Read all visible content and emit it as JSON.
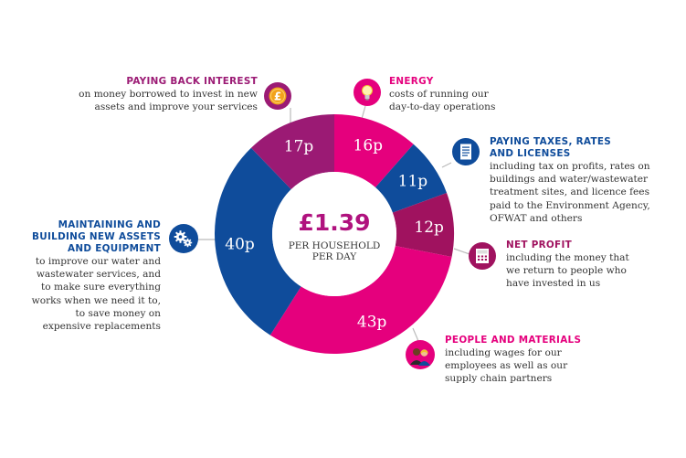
{
  "colors": {
    "pink": "#e5007d",
    "magenta": "#b0127e",
    "blue": "#0f4c9b",
    "purple": "#a0125f",
    "dark_purple": "#9b1a74",
    "connector": "#bbbbbb"
  },
  "center": {
    "amount": "£1.39",
    "line1": "PER HOUSEHOLD",
    "line2": "PER DAY"
  },
  "chart_data": {
    "type": "pie",
    "title": "£1.39 PER HOUSEHOLD PER DAY",
    "unit": "p",
    "slices": [
      {
        "label": "ENERGY",
        "value": 16,
        "text": "16p",
        "color": "#e5007d"
      },
      {
        "label": "PAYING TAXES, RATES AND LICENSES",
        "value": 11,
        "text": "11p",
        "color": "#0f4c9b"
      },
      {
        "label": "NET PROFIT",
        "value": 12,
        "text": "12p",
        "color": "#a0125f"
      },
      {
        "label": "PEOPLE AND MATERIALS",
        "value": 43,
        "text": "43p",
        "color": "#e5007d"
      },
      {
        "label": "MAINTAINING AND BUILDING NEW ASSETS AND EQUIPMENT",
        "value": 40,
        "text": "40p",
        "color": "#0f4c9b"
      },
      {
        "label": "PAYING BACK INTEREST",
        "value": 17,
        "text": "17p",
        "color": "#9b1a74"
      }
    ]
  },
  "labels": {
    "interest": {
      "head": "PAYING BACK INTEREST",
      "desc": [
        "on money borrowed to invest in new",
        "assets and improve your services"
      ],
      "icon": "pound-coin-icon"
    },
    "energy": {
      "head": "ENERGY",
      "desc": [
        "costs of running our",
        "day-to-day operations"
      ],
      "icon": "lightbulb-icon"
    },
    "taxes": {
      "head": [
        "PAYING TAXES, RATES",
        "AND LICENSES"
      ],
      "desc": [
        "including tax on profits, rates on",
        "buildings and water/wastewater",
        "treatment sites, and licence fees",
        "paid to the Environment Agency,",
        "OFWAT and others"
      ],
      "icon": "document-icon"
    },
    "profit": {
      "head": "NET PROFIT",
      "desc": [
        "including the money that",
        "we return to people who",
        "have invested in us"
      ],
      "icon": "calculator-icon"
    },
    "people": {
      "head": "PEOPLE AND MATERIALS",
      "desc": [
        "including wages for our",
        "employees as well as our",
        "supply chain partners"
      ],
      "icon": "people-icon"
    },
    "assets": {
      "head": [
        "MAINTAINING AND",
        "BUILDING NEW ASSETS",
        "AND EQUIPMENT"
      ],
      "desc": [
        "to improve our water and",
        "wastewater services, and",
        "to make sure everything",
        "works when we need it to,",
        "to save money on",
        "expensive replacements"
      ],
      "icon": "gears-icon"
    }
  }
}
